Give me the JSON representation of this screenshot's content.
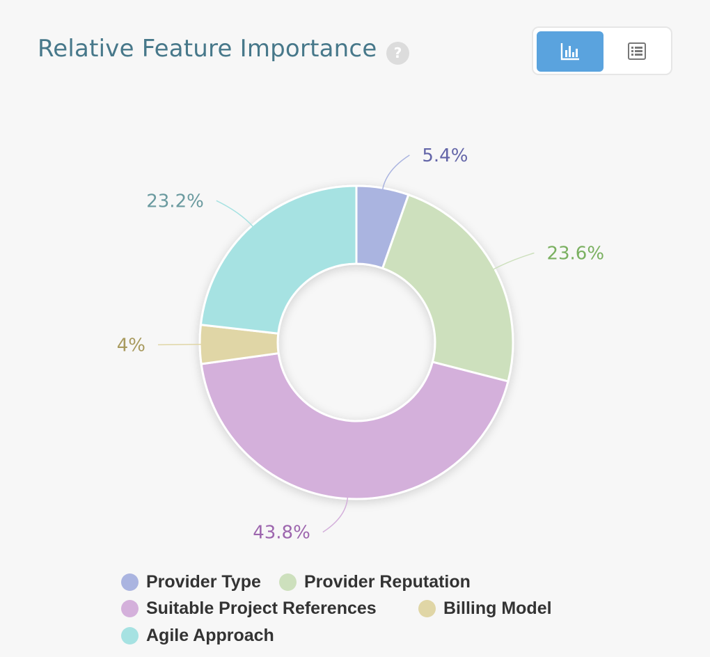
{
  "header": {
    "title": "Relative Feature Importance",
    "help_symbol": "?"
  },
  "view_toggle": {
    "active": "chart",
    "options": [
      {
        "name": "chart",
        "icon": "bar-chart-icon"
      },
      {
        "name": "table",
        "icon": "list-table-icon"
      }
    ]
  },
  "chart_data": {
    "type": "pie",
    "subtype": "donut",
    "title": "Relative Feature Importance",
    "slices": [
      {
        "label": "Provider Type",
        "value": 5.4,
        "display": "5.4%",
        "color": "#aab4e0",
        "label_color": "#6365a8"
      },
      {
        "label": "Provider Reputation",
        "value": 23.6,
        "display": "23.6%",
        "color": "#cde0bd",
        "label_color": "#7ab060"
      },
      {
        "label": "Suitable Project References",
        "value": 43.8,
        "display": "43.8%",
        "color": "#d4b0db",
        "label_color": "#9d66ae"
      },
      {
        "label": "Billing Model",
        "value": 4,
        "display": "4%",
        "color": "#e0d6a6",
        "label_color": "#a89a5e"
      },
      {
        "label": "Agile Approach",
        "value": 23.2,
        "display": "23.2%",
        "color": "#a6e2e2",
        "label_color": "#6a9a9f"
      }
    ],
    "legend_position": "bottom"
  }
}
